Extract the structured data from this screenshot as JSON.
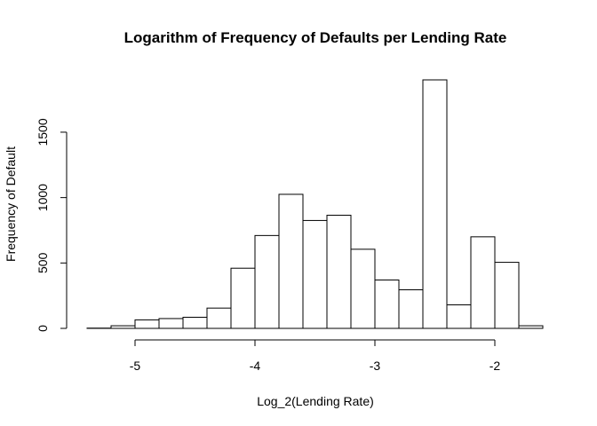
{
  "chart_data": {
    "type": "bar",
    "title": "Logarithm of Frequency of Defaults per Lending Rate",
    "xlabel": "Log_2(Lending Rate)",
    "ylabel": "Frequency of Default",
    "xlim": [
      -5.4,
      -1.6
    ],
    "ylim": [
      0,
      1900
    ],
    "x_ticks": [
      -5,
      -4,
      -3,
      -2
    ],
    "x_tick_labels": [
      "-5",
      "-4",
      "-3",
      "-2"
    ],
    "y_ticks": [
      0,
      500,
      1000,
      1500
    ],
    "y_tick_labels": [
      "0",
      "500",
      "1000",
      "1500"
    ],
    "grid": false,
    "bins": [
      {
        "x0": -5.4,
        "x1": -5.2,
        "value": 2
      },
      {
        "x0": -5.2,
        "x1": -5.0,
        "value": 20
      },
      {
        "x0": -5.0,
        "x1": -4.8,
        "value": 65
      },
      {
        "x0": -4.8,
        "x1": -4.6,
        "value": 75
      },
      {
        "x0": -4.6,
        "x1": -4.4,
        "value": 85
      },
      {
        "x0": -4.4,
        "x1": -4.2,
        "value": 155
      },
      {
        "x0": -4.2,
        "x1": -4.0,
        "value": 460
      },
      {
        "x0": -4.0,
        "x1": -3.8,
        "value": 710
      },
      {
        "x0": -3.8,
        "x1": -3.6,
        "value": 1025
      },
      {
        "x0": -3.6,
        "x1": -3.4,
        "value": 825
      },
      {
        "x0": -3.4,
        "x1": -3.2,
        "value": 865
      },
      {
        "x0": -3.2,
        "x1": -3.0,
        "value": 605
      },
      {
        "x0": -3.0,
        "x1": -2.8,
        "value": 370
      },
      {
        "x0": -2.8,
        "x1": -2.6,
        "value": 295
      },
      {
        "x0": -2.6,
        "x1": -2.4,
        "value": 1900
      },
      {
        "x0": -2.4,
        "x1": -2.2,
        "value": 180
      },
      {
        "x0": -2.2,
        "x1": -2.0,
        "value": 700
      },
      {
        "x0": -2.0,
        "x1": -1.8,
        "value": 505
      },
      {
        "x0": -1.8,
        "x1": -1.6,
        "value": 20
      }
    ]
  }
}
